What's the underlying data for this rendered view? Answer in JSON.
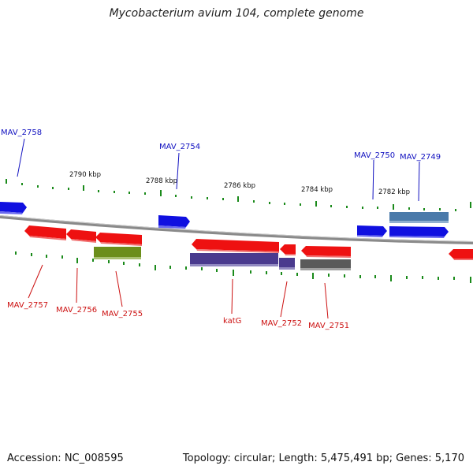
{
  "title": "Mycobacterium avium 104, complete genome",
  "accession_text": "Accession: NC_008595",
  "topology_text": "Topology: circular; Length: 5,475,491 bp; Genes: 5,170",
  "colors": {
    "backbone": "#8a8a8a",
    "tick": "#1a8a1a",
    "gene_forward": "#1010e0",
    "gene_reverse": "#ee1111",
    "label_forward": "#1010c0",
    "label_reverse": "#cc1111"
  },
  "ruler_labels": [
    "2790 kbp",
    "2788 kbp",
    "2786 kbp",
    "2784 kbp",
    "2782 kbp"
  ],
  "top_gene_labels": [
    "MAV_2758",
    "MAV_2754",
    "MAV_2750",
    "MAV_2749"
  ],
  "bottom_gene_labels": [
    "MAV_2757",
    "MAV_2756",
    "MAV_2755",
    "katG",
    "MAV_2752",
    "MAV_2751"
  ]
}
